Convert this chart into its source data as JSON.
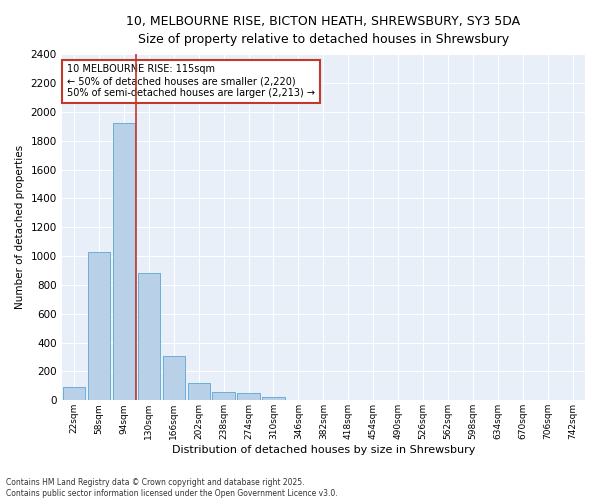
{
  "title_line1": "10, MELBOURNE RISE, BICTON HEATH, SHREWSBURY, SY3 5DA",
  "title_line2": "Size of property relative to detached houses in Shrewsbury",
  "xlabel": "Distribution of detached houses by size in Shrewsbury",
  "ylabel": "Number of detached properties",
  "categories": [
    "22sqm",
    "58sqm",
    "94sqm",
    "130sqm",
    "166sqm",
    "202sqm",
    "238sqm",
    "274sqm",
    "310sqm",
    "346sqm",
    "382sqm",
    "418sqm",
    "454sqm",
    "490sqm",
    "526sqm",
    "562sqm",
    "598sqm",
    "634sqm",
    "670sqm",
    "706sqm",
    "742sqm"
  ],
  "values": [
    90,
    1030,
    1920,
    880,
    310,
    120,
    60,
    50,
    25,
    0,
    0,
    0,
    0,
    0,
    0,
    0,
    0,
    0,
    0,
    0,
    0
  ],
  "bar_color": "#b8d0e8",
  "bar_edge_color": "#6baed6",
  "background_color": "#e8eff8",
  "grid_color": "#ffffff",
  "vline_color": "#c0392b",
  "annotation_text": "10 MELBOURNE RISE: 115sqm\n← 50% of detached houses are smaller (2,220)\n50% of semi-detached houses are larger (2,213) →",
  "annotation_box_color": "#c0392b",
  "ylim": [
    0,
    2400
  ],
  "yticks": [
    0,
    200,
    400,
    600,
    800,
    1000,
    1200,
    1400,
    1600,
    1800,
    2000,
    2200,
    2400
  ],
  "footnote1": "Contains HM Land Registry data © Crown copyright and database right 2025.",
  "footnote2": "Contains public sector information licensed under the Open Government Licence v3.0."
}
